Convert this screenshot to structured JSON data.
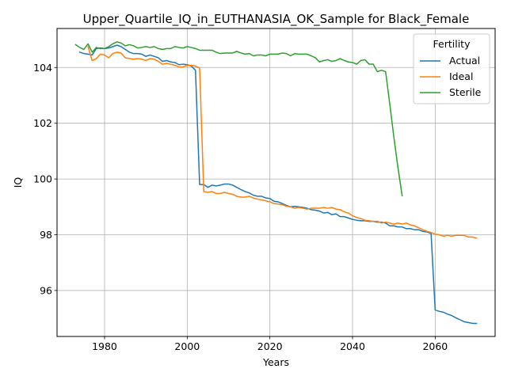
{
  "chart_data": {
    "type": "line",
    "title": "Upper_Quartile_IQ_in_EUTHANASIA_OK_Sample for Black_Female",
    "xlabel": "Years",
    "ylabel": "IQ",
    "xlim": [
      1968.5,
      2074.5
    ],
    "ylim": [
      94.35,
      105.4
    ],
    "xticks": [
      1980,
      2000,
      2020,
      2040,
      2060
    ],
    "yticks": [
      96,
      98,
      100,
      102,
      104
    ],
    "grid": true,
    "legend": {
      "title": "Fertility",
      "position": "top-right"
    },
    "series": [
      {
        "name": "Actual",
        "color": "#1f77b4",
        "points": [
          [
            1974,
            104.55
          ],
          [
            1975,
            104.5
          ],
          [
            1976,
            104.48
          ],
          [
            1977,
            104.45
          ],
          [
            1978,
            104.68
          ],
          [
            1979,
            104.7
          ],
          [
            1980,
            104.68
          ],
          [
            1981,
            104.7
          ],
          [
            1982,
            104.75
          ],
          [
            1983,
            104.8
          ],
          [
            1984,
            104.75
          ],
          [
            1985,
            104.65
          ],
          [
            1986,
            104.55
          ],
          [
            1987,
            104.5
          ],
          [
            1988,
            104.5
          ],
          [
            1989,
            104.48
          ],
          [
            1990,
            104.4
          ],
          [
            1991,
            104.45
          ],
          [
            1992,
            104.4
          ],
          [
            1993,
            104.35
          ],
          [
            1994,
            104.22
          ],
          [
            1995,
            104.25
          ],
          [
            1996,
            104.2
          ],
          [
            1997,
            104.18
          ],
          [
            1998,
            104.1
          ],
          [
            1999,
            104.12
          ],
          [
            2000,
            104.1
          ],
          [
            2001,
            104.05
          ],
          [
            2002,
            103.9
          ],
          [
            2003,
            99.8
          ],
          [
            2004,
            99.8
          ],
          [
            2005,
            99.7
          ],
          [
            2006,
            99.78
          ],
          [
            2007,
            99.75
          ],
          [
            2008,
            99.78
          ],
          [
            2009,
            99.82
          ],
          [
            2010,
            99.82
          ],
          [
            2011,
            99.78
          ],
          [
            2012,
            99.7
          ],
          [
            2013,
            99.62
          ],
          [
            2014,
            99.55
          ],
          [
            2015,
            99.5
          ],
          [
            2016,
            99.42
          ],
          [
            2017,
            99.38
          ],
          [
            2018,
            99.38
          ],
          [
            2019,
            99.32
          ],
          [
            2020,
            99.3
          ],
          [
            2021,
            99.2
          ],
          [
            2022,
            99.18
          ],
          [
            2023,
            99.12
          ],
          [
            2024,
            99.05
          ],
          [
            2025,
            99.0
          ],
          [
            2026,
            99.02
          ],
          [
            2027,
            99.0
          ],
          [
            2028,
            98.98
          ],
          [
            2029,
            98.95
          ],
          [
            2030,
            98.9
          ],
          [
            2031,
            98.88
          ],
          [
            2032,
            98.85
          ],
          [
            2033,
            98.78
          ],
          [
            2034,
            98.8
          ],
          [
            2035,
            98.72
          ],
          [
            2036,
            98.75
          ],
          [
            2037,
            98.65
          ],
          [
            2038,
            98.65
          ],
          [
            2039,
            98.6
          ],
          [
            2040,
            98.55
          ],
          [
            2041,
            98.52
          ],
          [
            2042,
            98.5
          ],
          [
            2043,
            98.5
          ],
          [
            2044,
            98.48
          ],
          [
            2045,
            98.48
          ],
          [
            2046,
            98.45
          ],
          [
            2047,
            98.45
          ],
          [
            2048,
            98.42
          ],
          [
            2049,
            98.32
          ],
          [
            2050,
            98.32
          ],
          [
            2051,
            98.28
          ],
          [
            2052,
            98.28
          ],
          [
            2053,
            98.22
          ],
          [
            2054,
            98.22
          ],
          [
            2055,
            98.18
          ],
          [
            2056,
            98.18
          ],
          [
            2057,
            98.12
          ],
          [
            2058,
            98.1
          ],
          [
            2059,
            98.05
          ],
          [
            2060,
            95.3
          ],
          [
            2061,
            95.25
          ],
          [
            2062,
            95.22
          ],
          [
            2063,
            95.15
          ],
          [
            2064,
            95.1
          ],
          [
            2065,
            95.02
          ],
          [
            2066,
            94.95
          ],
          [
            2067,
            94.88
          ],
          [
            2068,
            94.85
          ],
          [
            2069,
            94.82
          ],
          [
            2070,
            94.82
          ]
        ]
      },
      {
        "name": "Ideal",
        "color": "#ff7f0e",
        "points": [
          [
            1976,
            104.75
          ],
          [
            1977,
            104.25
          ],
          [
            1978,
            104.32
          ],
          [
            1979,
            104.48
          ],
          [
            1980,
            104.45
          ],
          [
            1981,
            104.35
          ],
          [
            1982,
            104.5
          ],
          [
            1983,
            104.55
          ],
          [
            1984,
            104.52
          ],
          [
            1985,
            104.35
          ],
          [
            1986,
            104.32
          ],
          [
            1987,
            104.3
          ],
          [
            1988,
            104.32
          ],
          [
            1989,
            104.3
          ],
          [
            1990,
            104.25
          ],
          [
            1991,
            104.32
          ],
          [
            1992,
            104.3
          ],
          [
            1993,
            104.22
          ],
          [
            1994,
            104.12
          ],
          [
            1995,
            104.15
          ],
          [
            1996,
            104.12
          ],
          [
            1997,
            104.08
          ],
          [
            1998,
            104.02
          ],
          [
            1999,
            104.02
          ],
          [
            2000,
            104.08
          ],
          [
            2001,
            104.08
          ],
          [
            2002,
            104.05
          ],
          [
            2003,
            103.98
          ],
          [
            2004,
            99.55
          ],
          [
            2005,
            99.52
          ],
          [
            2006,
            99.55
          ],
          [
            2007,
            99.48
          ],
          [
            2008,
            99.48
          ],
          [
            2009,
            99.52
          ],
          [
            2010,
            99.48
          ],
          [
            2011,
            99.45
          ],
          [
            2012,
            99.38
          ],
          [
            2013,
            99.35
          ],
          [
            2014,
            99.35
          ],
          [
            2015,
            99.38
          ],
          [
            2016,
            99.32
          ],
          [
            2017,
            99.28
          ],
          [
            2018,
            99.25
          ],
          [
            2019,
            99.22
          ],
          [
            2020,
            99.18
          ],
          [
            2021,
            99.12
          ],
          [
            2022,
            99.1
          ],
          [
            2023,
            99.08
          ],
          [
            2024,
            99.02
          ],
          [
            2025,
            99.0
          ],
          [
            2026,
            98.95
          ],
          [
            2027,
            98.98
          ],
          [
            2028,
            98.95
          ],
          [
            2029,
            98.92
          ],
          [
            2030,
            98.95
          ],
          [
            2031,
            98.95
          ],
          [
            2032,
            98.95
          ],
          [
            2033,
            98.98
          ],
          [
            2034,
            98.95
          ],
          [
            2035,
            98.98
          ],
          [
            2036,
            98.92
          ],
          [
            2037,
            98.9
          ],
          [
            2038,
            98.82
          ],
          [
            2039,
            98.78
          ],
          [
            2040,
            98.68
          ],
          [
            2041,
            98.62
          ],
          [
            2042,
            98.58
          ],
          [
            2043,
            98.52
          ],
          [
            2044,
            98.5
          ],
          [
            2045,
            98.48
          ],
          [
            2046,
            98.48
          ],
          [
            2047,
            98.42
          ],
          [
            2048,
            98.45
          ],
          [
            2049,
            98.42
          ],
          [
            2050,
            98.38
          ],
          [
            2051,
            98.42
          ],
          [
            2052,
            98.38
          ],
          [
            2053,
            98.42
          ],
          [
            2054,
            98.35
          ],
          [
            2055,
            98.32
          ],
          [
            2056,
            98.25
          ],
          [
            2057,
            98.18
          ],
          [
            2058,
            98.12
          ],
          [
            2059,
            98.08
          ],
          [
            2060,
            98.02
          ],
          [
            2061,
            98.0
          ],
          [
            2062,
            97.95
          ],
          [
            2063,
            97.98
          ],
          [
            2064,
            97.95
          ],
          [
            2065,
            97.98
          ],
          [
            2066,
            97.98
          ],
          [
            2067,
            97.98
          ],
          [
            2068,
            97.92
          ],
          [
            2069,
            97.92
          ],
          [
            2070,
            97.88
          ]
        ]
      },
      {
        "name": "Sterile",
        "color": "#2ca02c",
        "points": [
          [
            1973,
            104.82
          ],
          [
            1974,
            104.72
          ],
          [
            1975,
            104.65
          ],
          [
            1976,
            104.85
          ],
          [
            1977,
            104.55
          ],
          [
            1978,
            104.72
          ],
          [
            1979,
            104.68
          ],
          [
            1980,
            104.68
          ],
          [
            1981,
            104.75
          ],
          [
            1982,
            104.85
          ],
          [
            1983,
            104.92
          ],
          [
            1984,
            104.88
          ],
          [
            1985,
            104.78
          ],
          [
            1986,
            104.82
          ],
          [
            1987,
            104.78
          ],
          [
            1988,
            104.7
          ],
          [
            1989,
            104.72
          ],
          [
            1990,
            104.75
          ],
          [
            1991,
            104.72
          ],
          [
            1992,
            104.75
          ],
          [
            1993,
            104.68
          ],
          [
            1994,
            104.65
          ],
          [
            1995,
            104.68
          ],
          [
            1996,
            104.68
          ],
          [
            1997,
            104.75
          ],
          [
            1998,
            104.72
          ],
          [
            1999,
            104.7
          ],
          [
            2000,
            104.75
          ],
          [
            2001,
            104.72
          ],
          [
            2002,
            104.68
          ],
          [
            2003,
            104.62
          ],
          [
            2004,
            104.62
          ],
          [
            2005,
            104.62
          ],
          [
            2006,
            104.62
          ],
          [
            2007,
            104.55
          ],
          [
            2008,
            104.5
          ],
          [
            2009,
            104.52
          ],
          [
            2010,
            104.52
          ],
          [
            2011,
            104.52
          ],
          [
            2012,
            104.58
          ],
          [
            2013,
            104.52
          ],
          [
            2014,
            104.48
          ],
          [
            2015,
            104.5
          ],
          [
            2016,
            104.42
          ],
          [
            2017,
            104.45
          ],
          [
            2018,
            104.45
          ],
          [
            2019,
            104.42
          ],
          [
            2020,
            104.48
          ],
          [
            2021,
            104.48
          ],
          [
            2022,
            104.48
          ],
          [
            2023,
            104.52
          ],
          [
            2024,
            104.5
          ],
          [
            2025,
            104.42
          ],
          [
            2026,
            104.5
          ],
          [
            2027,
            104.48
          ],
          [
            2028,
            104.48
          ],
          [
            2029,
            104.48
          ],
          [
            2030,
            104.42
          ],
          [
            2031,
            104.35
          ],
          [
            2032,
            104.2
          ],
          [
            2033,
            104.25
          ],
          [
            2034,
            104.28
          ],
          [
            2035,
            104.22
          ],
          [
            2036,
            104.25
          ],
          [
            2037,
            104.32
          ],
          [
            2038,
            104.25
          ],
          [
            2039,
            104.2
          ],
          [
            2040,
            104.18
          ],
          [
            2041,
            104.12
          ],
          [
            2042,
            104.25
          ],
          [
            2043,
            104.28
          ],
          [
            2044,
            104.12
          ],
          [
            2045,
            104.12
          ],
          [
            2046,
            103.85
          ],
          [
            2047,
            103.9
          ],
          [
            2048,
            103.85
          ],
          [
            2049,
            102.7
          ],
          [
            2050,
            101.5
          ],
          [
            2051,
            100.4
          ],
          [
            2052,
            99.4
          ]
        ]
      }
    ]
  }
}
